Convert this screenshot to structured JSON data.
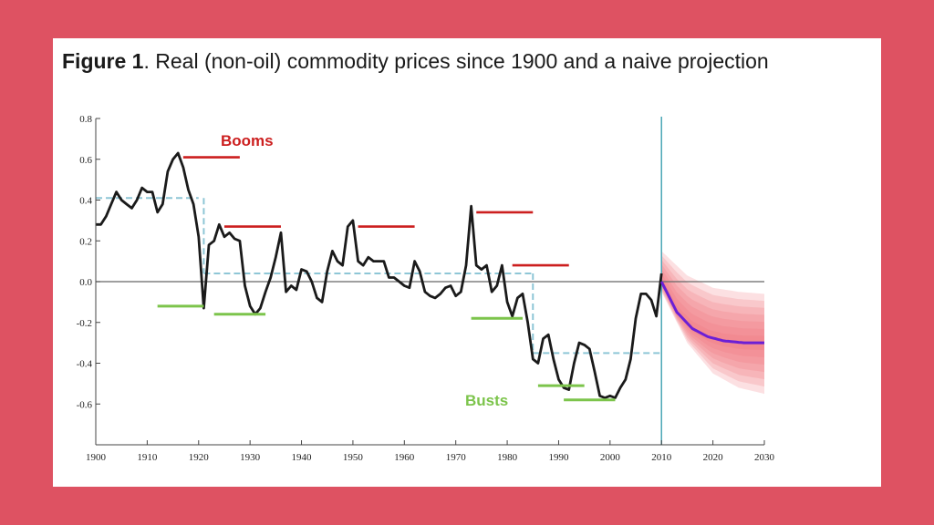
{
  "figure": {
    "label": "Figure 1",
    "caption": ". Real (non-oil) commodity prices since 1900 and a naive projection"
  },
  "colors": {
    "background": "#de5262",
    "series": "#1a1a1a",
    "boom": "#cc1f1f",
    "bust": "#7cc44b",
    "mean": "#8ec6d6",
    "projection": "#6b1fd6",
    "fan": "#f0707a",
    "divider": "#4aa6b6"
  },
  "annotations": {
    "booms": "Booms",
    "busts": "Busts"
  },
  "chart_data": {
    "type": "line",
    "xlim": [
      1900,
      2030
    ],
    "ylim": [
      -0.8,
      0.8
    ],
    "x_ticks": [
      "1900",
      "1910",
      "1920",
      "1930",
      "1940",
      "1950",
      "1960",
      "1970",
      "1980",
      "1990",
      "2000",
      "2010",
      "2020",
      "2030"
    ],
    "y_ticks": [
      "0.8",
      "0.6",
      "0.4",
      "0.2",
      "0.0",
      "-0.2",
      "-0.4",
      "-0.6"
    ],
    "series": [
      {
        "x": [
          1900,
          1901,
          1902,
          1903,
          1904,
          1905,
          1906,
          1907,
          1908,
          1909,
          1910,
          1911,
          1912,
          1913,
          1914,
          1915,
          1916,
          1917,
          1918,
          1919,
          1920,
          1921,
          1922,
          1923,
          1924,
          1925,
          1926,
          1927,
          1928,
          1929,
          1930,
          1931,
          1932,
          1933,
          1934,
          1935,
          1936,
          1937,
          1938,
          1939,
          1940,
          1941,
          1942,
          1943,
          1944,
          1945,
          1946,
          1947,
          1948,
          1949,
          1950,
          1951,
          1952,
          1953,
          1954,
          1955,
          1956,
          1957,
          1958,
          1959,
          1960,
          1961,
          1962,
          1963,
          1964,
          1965,
          1966,
          1967,
          1968,
          1969,
          1970,
          1971,
          1972,
          1973,
          1974,
          1975,
          1976,
          1977,
          1978,
          1979,
          1980,
          1981,
          1982,
          1983,
          1984,
          1985,
          1986,
          1987,
          1988,
          1989,
          1990,
          1991,
          1992,
          1993,
          1994,
          1995,
          1996,
          1997,
          1998,
          1999,
          2000,
          2001,
          2002,
          2003,
          2004,
          2005,
          2006,
          2007,
          2008,
          2009,
          2010
        ],
        "y": [
          0.28,
          0.28,
          0.32,
          0.38,
          0.44,
          0.4,
          0.38,
          0.36,
          0.4,
          0.46,
          0.44,
          0.44,
          0.34,
          0.38,
          0.54,
          0.6,
          0.63,
          0.56,
          0.45,
          0.38,
          0.22,
          -0.13,
          0.18,
          0.2,
          0.28,
          0.22,
          0.24,
          0.21,
          0.2,
          -0.02,
          -0.12,
          -0.16,
          -0.13,
          -0.05,
          0.02,
          0.12,
          0.24,
          -0.05,
          -0.02,
          -0.04,
          0.06,
          0.05,
          0.0,
          -0.08,
          -0.1,
          0.05,
          0.15,
          0.1,
          0.08,
          0.27,
          0.3,
          0.1,
          0.08,
          0.12,
          0.1,
          0.1,
          0.1,
          0.02,
          0.02,
          0.0,
          -0.02,
          -0.03,
          0.1,
          0.05,
          -0.05,
          -0.07,
          -0.08,
          -0.06,
          -0.03,
          -0.02,
          -0.07,
          -0.05,
          0.08,
          0.37,
          0.08,
          0.06,
          0.08,
          -0.05,
          -0.02,
          0.08,
          -0.1,
          -0.17,
          -0.08,
          -0.06,
          -0.2,
          -0.38,
          -0.4,
          -0.28,
          -0.26,
          -0.38,
          -0.48,
          -0.52,
          -0.53,
          -0.4,
          -0.3,
          -0.31,
          -0.33,
          -0.44,
          -0.56,
          -0.57,
          -0.56,
          -0.57,
          -0.52,
          -0.48,
          -0.38,
          -0.18,
          -0.06,
          -0.06,
          -0.09,
          -0.17,
          0.04
        ]
      },
      {
        "name": "projection",
        "x": [
          2010,
          2013,
          2016,
          2019,
          2022,
          2026,
          2030
        ],
        "y": [
          0.0,
          -0.15,
          -0.23,
          -0.27,
          -0.29,
          -0.3,
          -0.3
        ]
      }
    ],
    "means": [
      {
        "from": 1900,
        "to": 1920,
        "y": 0.41
      },
      {
        "from": 1921,
        "to": 1985,
        "y": 0.04
      },
      {
        "from": 1985,
        "to": 2010,
        "y": -0.35
      }
    ],
    "fan_band": {
      "x": [
        2010,
        2015,
        2020,
        2025,
        2030
      ],
      "upper": [
        0.15,
        0.03,
        -0.03,
        -0.05,
        -0.06
      ],
      "lower": [
        -0.05,
        -0.3,
        -0.45,
        -0.52,
        -0.55
      ]
    },
    "booms": [
      {
        "from": 1917,
        "to": 1928,
        "y": 0.61
      },
      {
        "from": 1925,
        "to": 1936,
        "y": 0.27
      },
      {
        "from": 1951,
        "to": 1962,
        "y": 0.27
      },
      {
        "from": 1974,
        "to": 1985,
        "y": 0.34
      },
      {
        "from": 1981,
        "to": 1992,
        "y": 0.08
      }
    ],
    "busts": [
      {
        "from": 1912,
        "to": 1921,
        "y": -0.12
      },
      {
        "from": 1923,
        "to": 1933,
        "y": -0.16
      },
      {
        "from": 1973,
        "to": 1983,
        "y": -0.18
      },
      {
        "from": 1986,
        "to": 1995,
        "y": -0.51
      },
      {
        "from": 1991,
        "to": 2001,
        "y": -0.58
      }
    ],
    "divider_year": 2010
  }
}
